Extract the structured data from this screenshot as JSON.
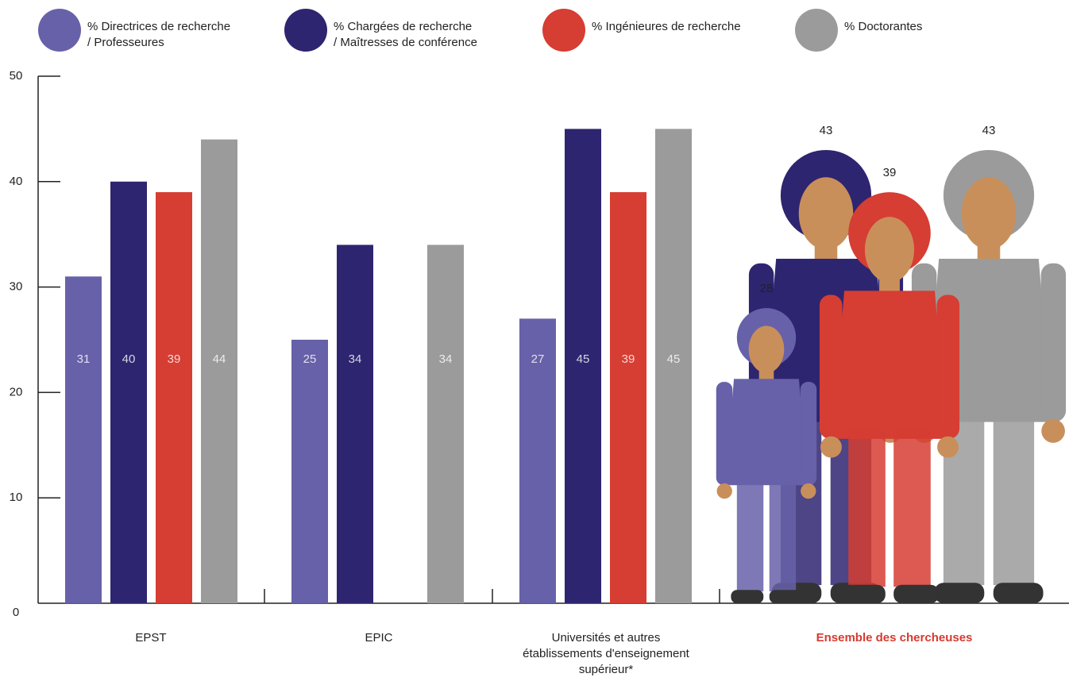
{
  "chart_data": {
    "type": "bar",
    "categories": [
      "EPST",
      "EPIC",
      "Universités et autres\nétablissements d'enseignement\nsupérieur*",
      "Ensemble des chercheuses"
    ],
    "category_colors": [
      "#222222",
      "#222222",
      "#222222",
      "#d63a2f"
    ],
    "last_category_style": "figures",
    "series": [
      {
        "name": "% Directrices de recherche\n/ Professeures",
        "color": "#6761a9",
        "values": [
          31,
          25,
          27,
          28
        ]
      },
      {
        "name": "% Chargées de recherche\n/ Maîtresses de conférence",
        "color": "#2e2570",
        "values": [
          40,
          34,
          45,
          43
        ]
      },
      {
        "name": "% Ingénieures de recherche",
        "color": "#d63d33",
        "values": [
          39,
          null,
          39,
          39
        ]
      },
      {
        "name": "% Doctorantes",
        "color": "#9b9b9b",
        "values": [
          44,
          34,
          45,
          43
        ]
      }
    ],
    "ylim": [
      0,
      50
    ],
    "yticks": [
      0,
      10,
      20,
      30,
      40,
      50
    ],
    "legend": "top"
  }
}
